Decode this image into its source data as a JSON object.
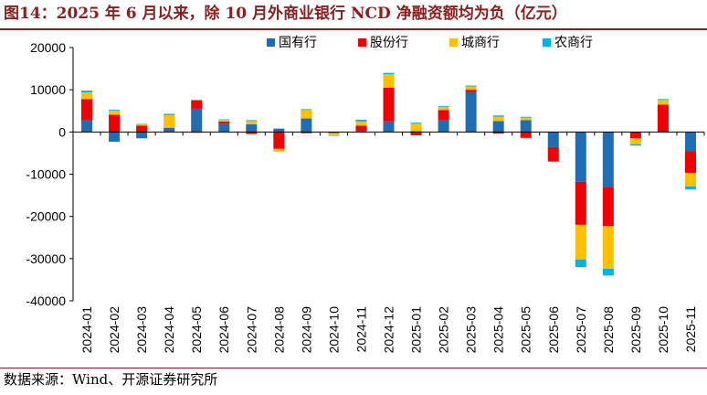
{
  "header": {
    "title": "图14：2025 年 6 月以来，除 10 月外商业银行 NCD 净融资额均为负（亿元）"
  },
  "footer": {
    "source": "数据来源：Wind、开源证券研究所"
  },
  "colors": {
    "title": "#8B1E1E",
    "国有行": "#1F6EB5",
    "股份行": "#F00000",
    "城商行": "#FFC000",
    "农商行": "#00B0F0"
  },
  "chart_data": {
    "type": "bar",
    "stacked": true,
    "categories": [
      "2024-01",
      "2024-02",
      "2024-03",
      "2024-04",
      "2024-05",
      "2024-06",
      "2024-07",
      "2024-08",
      "2024-09",
      "2024-10",
      "2024-11",
      "2024-12",
      "2025-01",
      "2025-02",
      "2025-03",
      "2025-04",
      "2025-05",
      "2025-06",
      "2025-07",
      "2025-08",
      "2025-09",
      "2025-10",
      "2025-11"
    ],
    "series": [
      {
        "name": "国有行",
        "color": "#1F6EB5",
        "values": [
          2800,
          -2300,
          -1500,
          1000,
          5500,
          2000,
          1800,
          800,
          3200,
          -300,
          200,
          2500,
          200,
          2800,
          9500,
          2600,
          2800,
          -3600,
          -11800,
          -13000,
          0,
          0,
          -4500
        ]
      },
      {
        "name": "股份行",
        "color": "#F00000",
        "values": [
          5000,
          4100,
          1500,
          0,
          2000,
          500,
          -500,
          -4000,
          -300,
          0,
          1300,
          8000,
          -800,
          2400,
          500,
          -400,
          -1400,
          -3400,
          -10200,
          -9300,
          -1500,
          6500,
          -5200
        ]
      },
      {
        "name": "城商行",
        "color": "#FFC000",
        "values": [
          1600,
          1000,
          300,
          3000,
          -300,
          400,
          800,
          -500,
          2000,
          -500,
          1000,
          3200,
          1800,
          700,
          800,
          1000,
          600,
          0,
          -8200,
          -10100,
          -1400,
          1100,
          -3200
        ]
      },
      {
        "name": "农商行",
        "color": "#00B0F0",
        "values": [
          400,
          200,
          100,
          300,
          100,
          100,
          200,
          -100,
          200,
          -100,
          400,
          300,
          200,
          200,
          200,
          300,
          200,
          0,
          -1800,
          -1600,
          -300,
          200,
          -700
        ]
      }
    ],
    "ylim": [
      -40000,
      20000
    ],
    "yticks": [
      20000,
      10000,
      0,
      -10000,
      -20000,
      -30000,
      -40000
    ],
    "ytick_labels": [
      "20000",
      "10000",
      "0",
      "-10000",
      "-20000",
      "-30000",
      "-40000"
    ],
    "legend_position": "top",
    "grid": false
  }
}
